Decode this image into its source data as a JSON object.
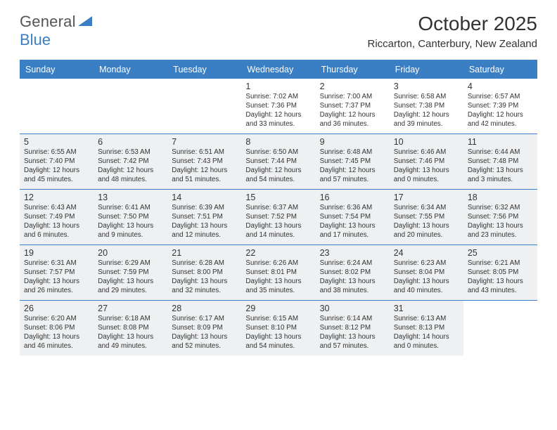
{
  "brand": {
    "part1": "General",
    "part2": "Blue"
  },
  "title": "October 2025",
  "location": "Riccarton, Canterbury, New Zealand",
  "accent_color": "#3a7fc4",
  "shaded_bg": "#eef0f2",
  "day_names": [
    "Sunday",
    "Monday",
    "Tuesday",
    "Wednesday",
    "Thursday",
    "Friday",
    "Saturday"
  ],
  "weeks": [
    [
      {
        "n": "",
        "shaded": false
      },
      {
        "n": "",
        "shaded": false
      },
      {
        "n": "",
        "shaded": false
      },
      {
        "n": "1",
        "shaded": false,
        "sunrise": "7:02 AM",
        "sunset": "7:36 PM",
        "daylight": "12 hours and 33 minutes."
      },
      {
        "n": "2",
        "shaded": false,
        "sunrise": "7:00 AM",
        "sunset": "7:37 PM",
        "daylight": "12 hours and 36 minutes."
      },
      {
        "n": "3",
        "shaded": false,
        "sunrise": "6:58 AM",
        "sunset": "7:38 PM",
        "daylight": "12 hours and 39 minutes."
      },
      {
        "n": "4",
        "shaded": false,
        "sunrise": "6:57 AM",
        "sunset": "7:39 PM",
        "daylight": "12 hours and 42 minutes."
      }
    ],
    [
      {
        "n": "5",
        "shaded": true,
        "sunrise": "6:55 AM",
        "sunset": "7:40 PM",
        "daylight": "12 hours and 45 minutes."
      },
      {
        "n": "6",
        "shaded": true,
        "sunrise": "6:53 AM",
        "sunset": "7:42 PM",
        "daylight": "12 hours and 48 minutes."
      },
      {
        "n": "7",
        "shaded": true,
        "sunrise": "6:51 AM",
        "sunset": "7:43 PM",
        "daylight": "12 hours and 51 minutes."
      },
      {
        "n": "8",
        "shaded": true,
        "sunrise": "6:50 AM",
        "sunset": "7:44 PM",
        "daylight": "12 hours and 54 minutes."
      },
      {
        "n": "9",
        "shaded": true,
        "sunrise": "6:48 AM",
        "sunset": "7:45 PM",
        "daylight": "12 hours and 57 minutes."
      },
      {
        "n": "10",
        "shaded": true,
        "sunrise": "6:46 AM",
        "sunset": "7:46 PM",
        "daylight": "13 hours and 0 minutes."
      },
      {
        "n": "11",
        "shaded": true,
        "sunrise": "6:44 AM",
        "sunset": "7:48 PM",
        "daylight": "13 hours and 3 minutes."
      }
    ],
    [
      {
        "n": "12",
        "shaded": true,
        "sunrise": "6:43 AM",
        "sunset": "7:49 PM",
        "daylight": "13 hours and 6 minutes."
      },
      {
        "n": "13",
        "shaded": true,
        "sunrise": "6:41 AM",
        "sunset": "7:50 PM",
        "daylight": "13 hours and 9 minutes."
      },
      {
        "n": "14",
        "shaded": true,
        "sunrise": "6:39 AM",
        "sunset": "7:51 PM",
        "daylight": "13 hours and 12 minutes."
      },
      {
        "n": "15",
        "shaded": true,
        "sunrise": "6:37 AM",
        "sunset": "7:52 PM",
        "daylight": "13 hours and 14 minutes."
      },
      {
        "n": "16",
        "shaded": true,
        "sunrise": "6:36 AM",
        "sunset": "7:54 PM",
        "daylight": "13 hours and 17 minutes."
      },
      {
        "n": "17",
        "shaded": true,
        "sunrise": "6:34 AM",
        "sunset": "7:55 PM",
        "daylight": "13 hours and 20 minutes."
      },
      {
        "n": "18",
        "shaded": true,
        "sunrise": "6:32 AM",
        "sunset": "7:56 PM",
        "daylight": "13 hours and 23 minutes."
      }
    ],
    [
      {
        "n": "19",
        "shaded": true,
        "sunrise": "6:31 AM",
        "sunset": "7:57 PM",
        "daylight": "13 hours and 26 minutes."
      },
      {
        "n": "20",
        "shaded": true,
        "sunrise": "6:29 AM",
        "sunset": "7:59 PM",
        "daylight": "13 hours and 29 minutes."
      },
      {
        "n": "21",
        "shaded": true,
        "sunrise": "6:28 AM",
        "sunset": "8:00 PM",
        "daylight": "13 hours and 32 minutes."
      },
      {
        "n": "22",
        "shaded": true,
        "sunrise": "6:26 AM",
        "sunset": "8:01 PM",
        "daylight": "13 hours and 35 minutes."
      },
      {
        "n": "23",
        "shaded": true,
        "sunrise": "6:24 AM",
        "sunset": "8:02 PM",
        "daylight": "13 hours and 38 minutes."
      },
      {
        "n": "24",
        "shaded": true,
        "sunrise": "6:23 AM",
        "sunset": "8:04 PM",
        "daylight": "13 hours and 40 minutes."
      },
      {
        "n": "25",
        "shaded": true,
        "sunrise": "6:21 AM",
        "sunset": "8:05 PM",
        "daylight": "13 hours and 43 minutes."
      }
    ],
    [
      {
        "n": "26",
        "shaded": true,
        "sunrise": "6:20 AM",
        "sunset": "8:06 PM",
        "daylight": "13 hours and 46 minutes."
      },
      {
        "n": "27",
        "shaded": true,
        "sunrise": "6:18 AM",
        "sunset": "8:08 PM",
        "daylight": "13 hours and 49 minutes."
      },
      {
        "n": "28",
        "shaded": true,
        "sunrise": "6:17 AM",
        "sunset": "8:09 PM",
        "daylight": "13 hours and 52 minutes."
      },
      {
        "n": "29",
        "shaded": true,
        "sunrise": "6:15 AM",
        "sunset": "8:10 PM",
        "daylight": "13 hours and 54 minutes."
      },
      {
        "n": "30",
        "shaded": true,
        "sunrise": "6:14 AM",
        "sunset": "8:12 PM",
        "daylight": "13 hours and 57 minutes."
      },
      {
        "n": "31",
        "shaded": true,
        "sunrise": "6:13 AM",
        "sunset": "8:13 PM",
        "daylight": "14 hours and 0 minutes."
      },
      {
        "n": "",
        "shaded": false
      }
    ]
  ],
  "labels": {
    "sunrise": "Sunrise:",
    "sunset": "Sunset:",
    "daylight": "Daylight:"
  }
}
